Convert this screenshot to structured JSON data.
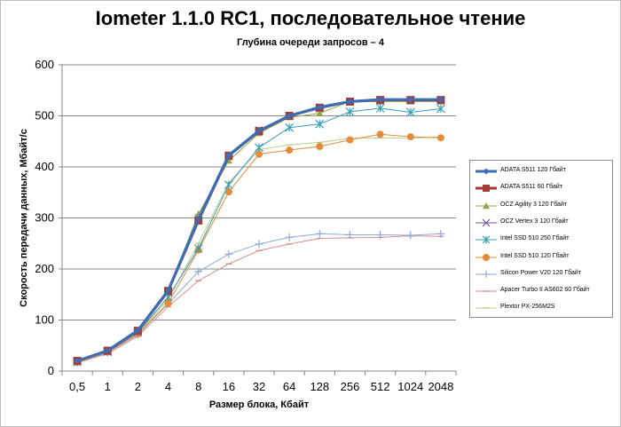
{
  "chart_data": {
    "type": "line",
    "title": "Iometer 1.1.0 RC1, последовательное чтение",
    "subtitle": "Глубина очереди запросов – 4",
    "xlabel": "Размер блока, Кбайт",
    "ylabel": "Скорость передачи данных, Мбайт/с",
    "ylim": [
      0,
      600
    ],
    "yticks": [
      "0",
      "100",
      "200",
      "300",
      "400",
      "500",
      "600"
    ],
    "categories": [
      "0,5",
      "1",
      "2",
      "4",
      "8",
      "16",
      "32",
      "64",
      "128",
      "256",
      "512",
      "1024",
      "2048"
    ],
    "grid": "horizontal",
    "legend_position": "right",
    "series": [
      {
        "name": "ADATA  S511 120 Гбайт",
        "color": "#3a6fb5",
        "marker": "diamond",
        "values": [
          20,
          40,
          80,
          158,
          298,
          423,
          471,
          500,
          517,
          528,
          532,
          532,
          532
        ]
      },
      {
        "name": "ADATA  S511 60 Гбайт",
        "color": "#a33b3a",
        "marker": "square",
        "values": [
          20,
          40,
          79,
          157,
          295,
          422,
          470,
          500,
          516,
          528,
          531,
          531,
          531
        ]
      },
      {
        "name": "OCZ Agility  3 120 Гбайт",
        "color": "#8aa64b",
        "marker": "triangle",
        "values": [
          20,
          39,
          78,
          156,
          308,
          412,
          466,
          497,
          505,
          528,
          528,
          528,
          528
        ]
      },
      {
        "name": "OCZ Vertex  3 120 Гбайт",
        "color": "#6f56a0",
        "marker": "x",
        "values": [
          19,
          38,
          77,
          154,
          300,
          420,
          472,
          500,
          514,
          527,
          530,
          530,
          530
        ]
      },
      {
        "name": "Intel  SSD 510 250 Гбайт",
        "color": "#3a9db5",
        "marker": "star",
        "values": [
          18,
          38,
          76,
          145,
          240,
          365,
          438,
          477,
          484,
          508,
          515,
          507,
          514
        ]
      },
      {
        "name": "Intel  SSD 510 120 Гбайт",
        "color": "#e68a3a",
        "marker": "circle",
        "values": [
          17,
          37,
          73,
          133,
          237,
          351,
          425,
          433,
          440,
          453,
          464,
          459,
          457
        ]
      },
      {
        "name": "Silicon Power  V20 120 Гбайт",
        "color": "#8fa9d8",
        "marker": "plus",
        "values": [
          17,
          36,
          71,
          132,
          195,
          229,
          249,
          262,
          269,
          267,
          267,
          266,
          269
        ]
      },
      {
        "name": "Apacer Turbo II AS602 60 Гбайт",
        "color": "#d98f8e",
        "marker": "dash",
        "values": [
          16,
          34,
          68,
          126,
          177,
          210,
          236,
          249,
          260,
          261,
          262,
          265,
          264
        ]
      },
      {
        "name": "Plextor PX-256M2S",
        "color": "#b8cd8c",
        "marker": "dash",
        "values": [
          18,
          37,
          74,
          140,
          250,
          369,
          434,
          443,
          448,
          456,
          457,
          456,
          459
        ]
      }
    ]
  }
}
